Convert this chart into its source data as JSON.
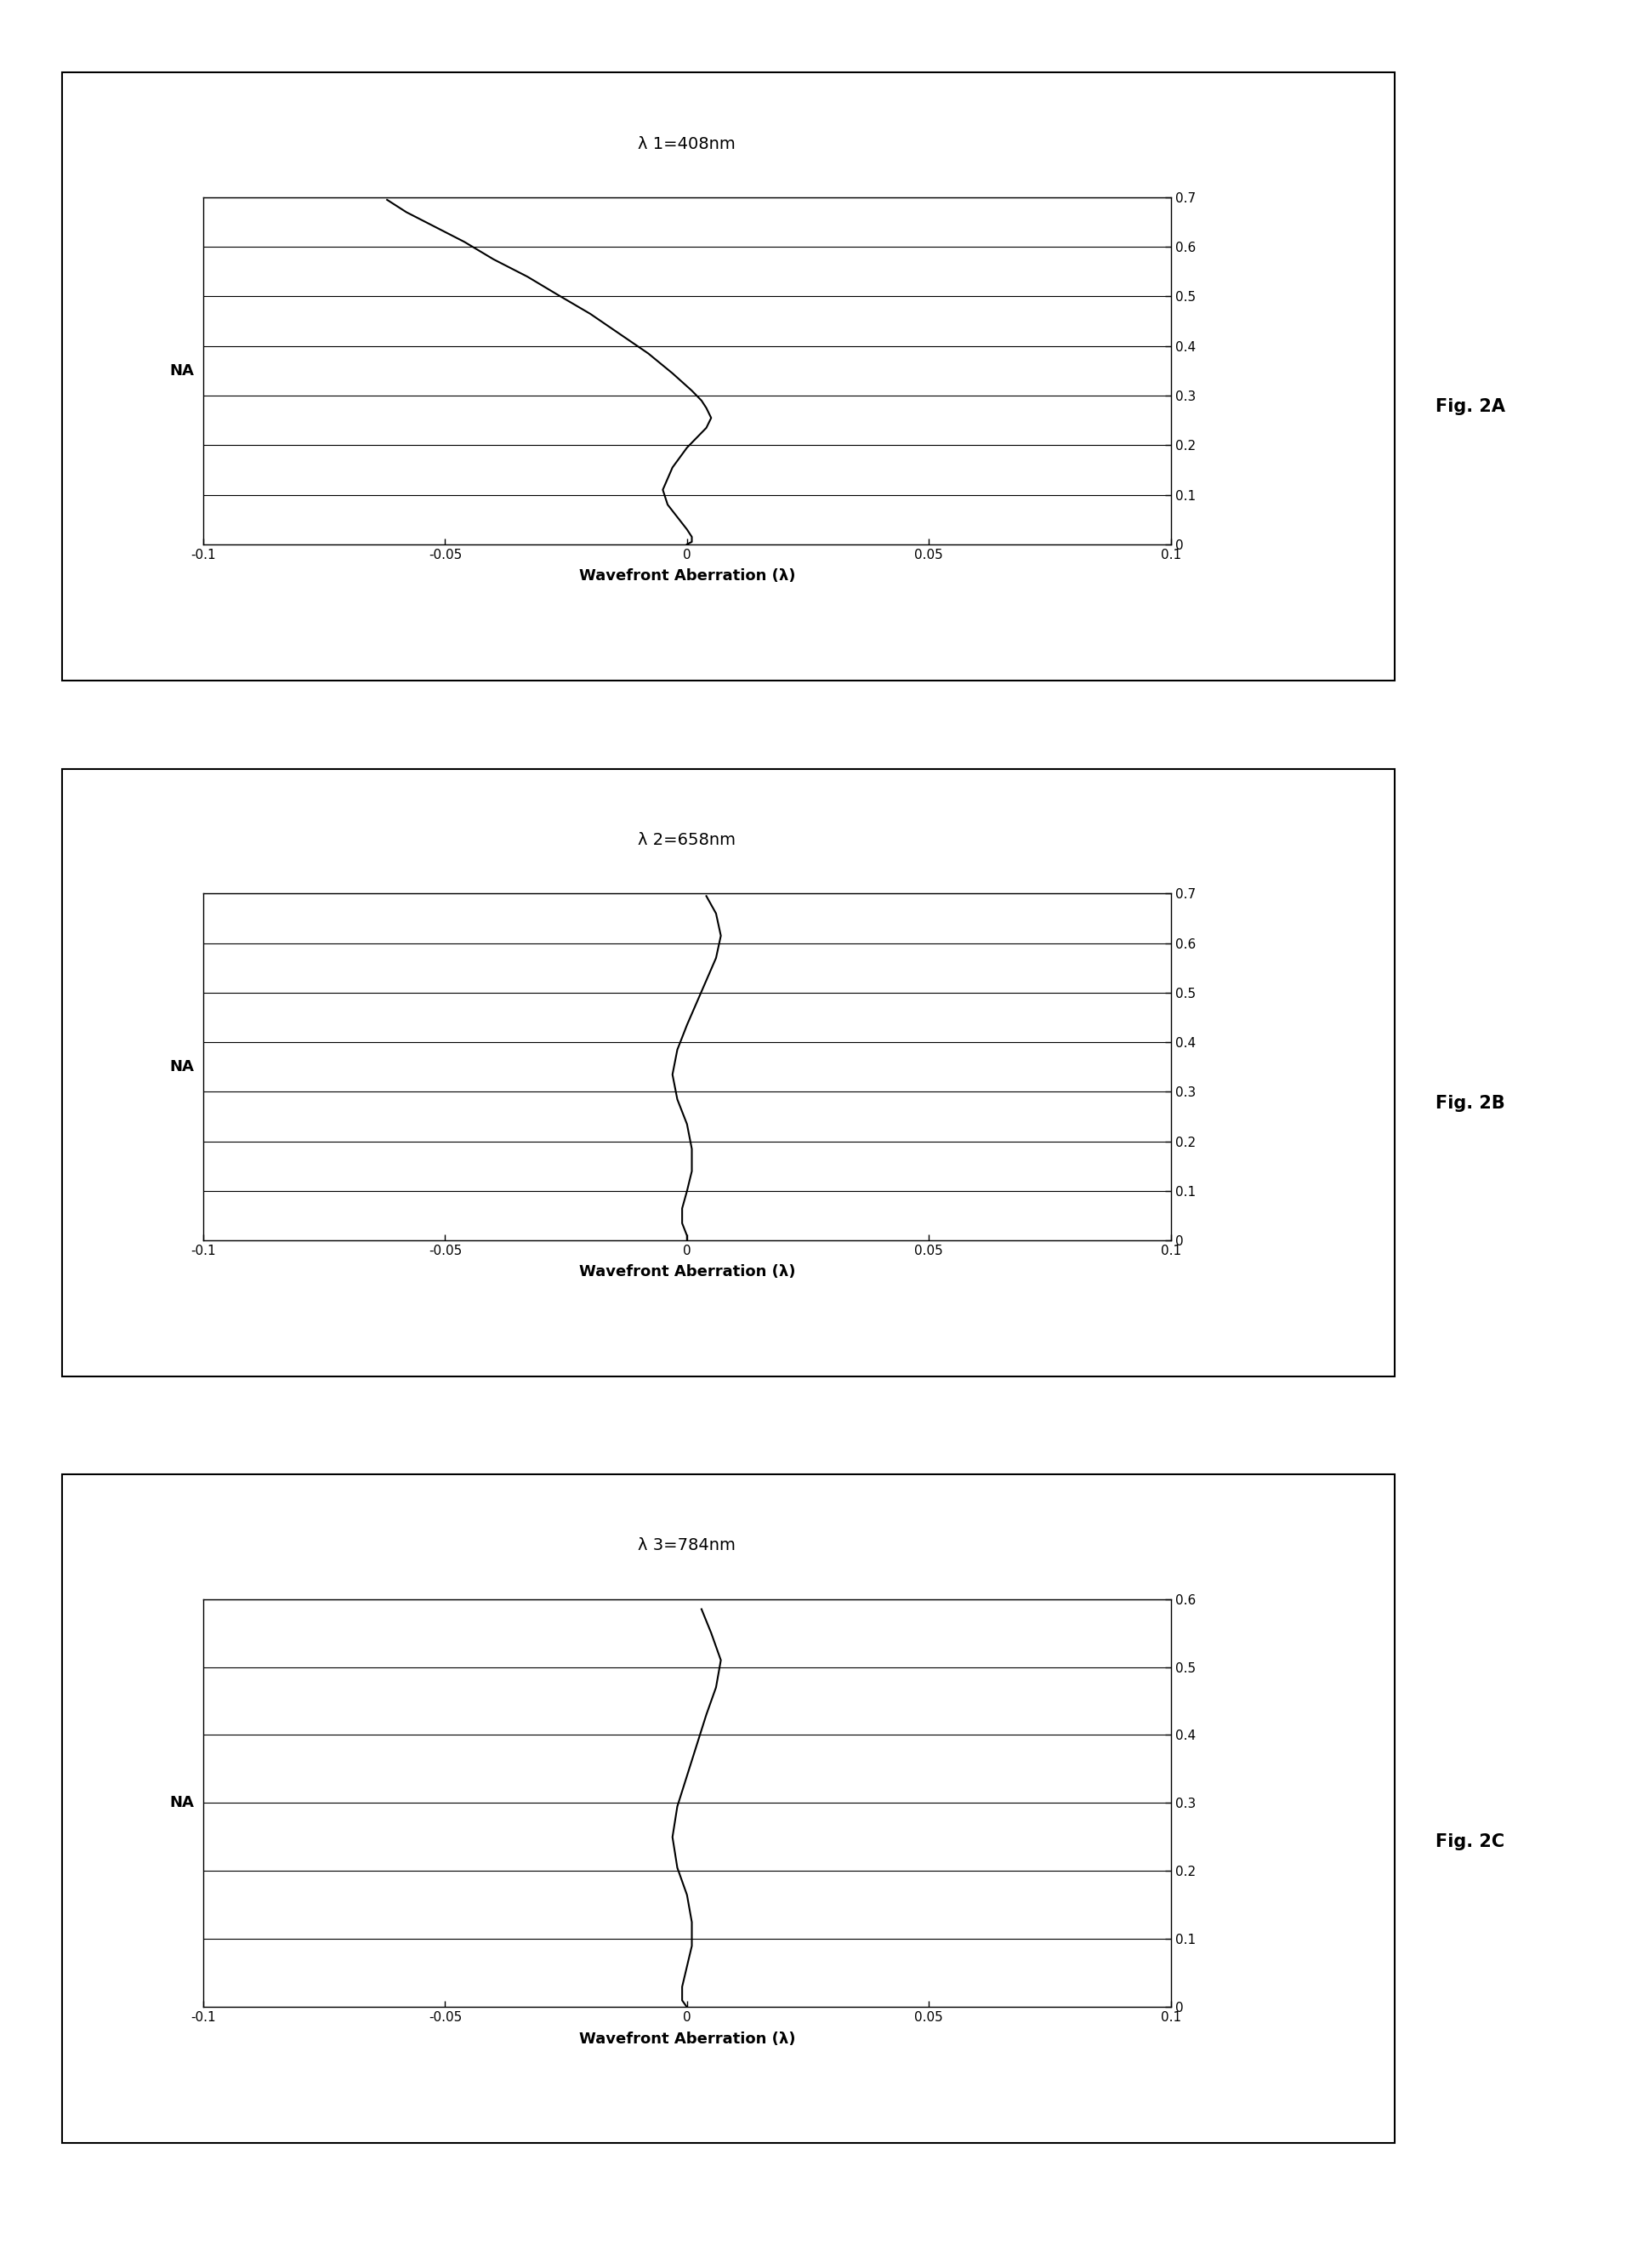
{
  "panels": [
    {
      "title": "λ 1=408nm",
      "fig_label": "Fig. 2A",
      "xlim": [
        -0.1,
        0.1
      ],
      "ylim": [
        0,
        0.7
      ],
      "yticks": [
        0,
        0.1,
        0.2,
        0.3,
        0.4,
        0.5,
        0.6,
        0.7
      ],
      "xticks": [
        -0.1,
        -0.05,
        0,
        0.05,
        0.1
      ],
      "curve_x": [
        -0.062,
        -0.058,
        -0.052,
        -0.046,
        -0.04,
        -0.033,
        -0.027,
        -0.02,
        -0.014,
        -0.008,
        -0.003,
        0.001,
        0.003,
        0.004,
        0.005,
        0.004,
        0.002,
        0.0,
        -0.003,
        -0.005,
        -0.004,
        -0.002,
        0.0,
        0.001,
        0.001,
        0.0
      ],
      "curve_y": [
        0.695,
        0.67,
        0.64,
        0.61,
        0.575,
        0.54,
        0.505,
        0.465,
        0.425,
        0.385,
        0.345,
        0.31,
        0.29,
        0.275,
        0.255,
        0.235,
        0.215,
        0.195,
        0.155,
        0.11,
        0.08,
        0.055,
        0.03,
        0.015,
        0.005,
        0.0
      ]
    },
    {
      "title": "λ 2=658nm",
      "fig_label": "Fig. 2B",
      "xlim": [
        -0.1,
        0.1
      ],
      "ylim": [
        0,
        0.7
      ],
      "yticks": [
        0,
        0.1,
        0.2,
        0.3,
        0.4,
        0.5,
        0.6,
        0.7
      ],
      "xticks": [
        -0.1,
        -0.05,
        0,
        0.05,
        0.1
      ],
      "curve_x": [
        0.004,
        0.006,
        0.007,
        0.006,
        0.004,
        0.002,
        0.0,
        -0.002,
        -0.003,
        -0.002,
        0.0,
        0.001,
        0.001,
        0.0,
        -0.001,
        -0.001,
        0.0,
        0.0
      ],
      "curve_y": [
        0.695,
        0.66,
        0.615,
        0.57,
        0.525,
        0.48,
        0.435,
        0.385,
        0.335,
        0.285,
        0.235,
        0.185,
        0.14,
        0.1,
        0.065,
        0.035,
        0.01,
        0.0
      ]
    },
    {
      "title": "λ 3=784nm",
      "fig_label": "Fig. 2C",
      "xlim": [
        -0.1,
        0.1
      ],
      "ylim": [
        0,
        0.6
      ],
      "yticks": [
        0,
        0.1,
        0.2,
        0.3,
        0.4,
        0.5,
        0.6
      ],
      "xticks": [
        -0.1,
        -0.05,
        0,
        0.05,
        0.1
      ],
      "curve_x": [
        0.003,
        0.005,
        0.007,
        0.006,
        0.004,
        0.002,
        0.0,
        -0.002,
        -0.003,
        -0.002,
        0.0,
        0.001,
        0.001,
        0.0,
        -0.001,
        -0.001,
        0.0
      ],
      "curve_y": [
        0.585,
        0.55,
        0.51,
        0.47,
        0.43,
        0.385,
        0.34,
        0.295,
        0.25,
        0.205,
        0.165,
        0.125,
        0.09,
        0.06,
        0.03,
        0.01,
        0.0
      ]
    }
  ],
  "xlabel": "Wavefront Aberration (λ)",
  "ylabel": "NA",
  "background_color": "#ffffff",
  "plot_bg_color": "#ffffff",
  "line_color": "#000000",
  "line_width": 1.5,
  "font_size_title": 14,
  "font_size_label": 13,
  "font_size_tick": 11,
  "font_size_fig_label": 15,
  "fig_width": 19.12,
  "fig_height": 26.66
}
